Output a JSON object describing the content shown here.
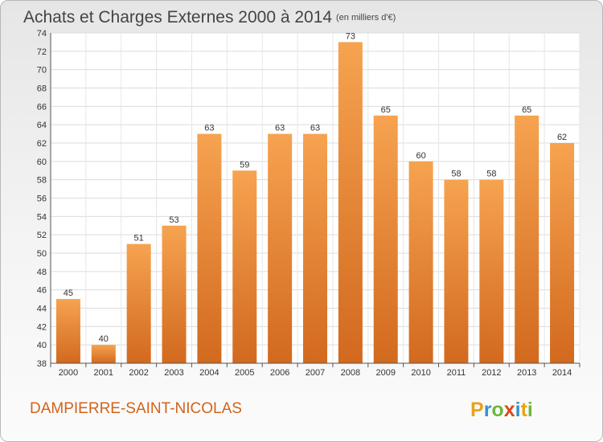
{
  "chart_data": {
    "type": "bar",
    "title": "Achats et Charges Externes 2000 à 2014",
    "subtitle": "(en milliers d'€)",
    "categories": [
      "2000",
      "2001",
      "2002",
      "2003",
      "2004",
      "2005",
      "2006",
      "2007",
      "2008",
      "2009",
      "2010",
      "2011",
      "2012",
      "2013",
      "2014"
    ],
    "values": [
      45,
      40,
      51,
      53,
      63,
      59,
      63,
      63,
      73,
      65,
      60,
      58,
      58,
      65,
      62
    ],
    "ylim": [
      38,
      74
    ],
    "yticks": [
      38,
      40,
      42,
      44,
      46,
      48,
      50,
      52,
      54,
      56,
      58,
      60,
      62,
      64,
      66,
      68,
      70,
      72,
      74
    ],
    "xlabel": "",
    "ylabel": "",
    "grid": true,
    "bar_color_top": "#f6a350",
    "bar_color_bottom": "#d2691e"
  },
  "place_name": "DAMPIERRE-SAINT-NICOLAS",
  "brand": {
    "letters": [
      "P",
      "r",
      "o",
      "x",
      "i",
      "t",
      "i"
    ],
    "colors": [
      "#e8a21a",
      "#3a8fd0",
      "#6fb83a",
      "#d84a1b",
      "#3a8fd0",
      "#e8a21a",
      "#6fb83a"
    ]
  }
}
